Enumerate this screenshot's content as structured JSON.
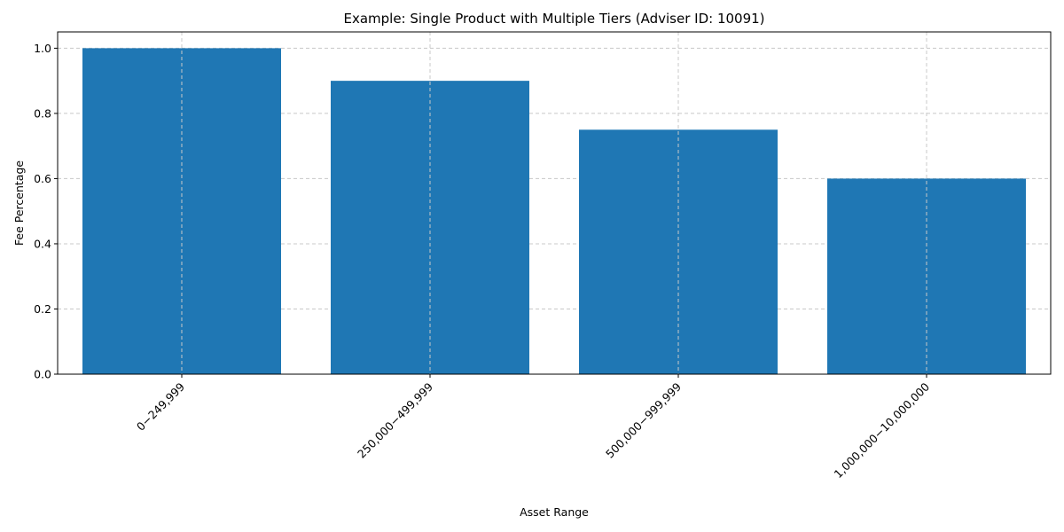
{
  "chart_data": {
    "type": "bar",
    "title": "Example: Single Product with Multiple Tiers (Adviser ID: 10091)",
    "xlabel": "Asset Range",
    "ylabel": "Fee Percentage",
    "categories": [
      "$0 - $249,999",
      "$250,000 - $499,999",
      "$500,000 - $999,999",
      "$1,000,000 - $10,000,000"
    ],
    "category_labels": [
      "0−249,999",
      "250,000−499,999",
      "500,000−999,999",
      "1,000,000−10,000,000"
    ],
    "values": [
      1.0,
      0.9,
      0.75,
      0.6
    ],
    "ylim": [
      0,
      1.05
    ],
    "yticks": [
      0.0,
      0.2,
      0.4,
      0.6,
      0.8,
      1.0
    ],
    "ytick_labels": [
      "0.0",
      "0.2",
      "0.4",
      "0.6",
      "0.8",
      "1.0"
    ],
    "grid": true,
    "bar_color": "#1f77b4",
    "grid_color": "#c8c8c8"
  }
}
